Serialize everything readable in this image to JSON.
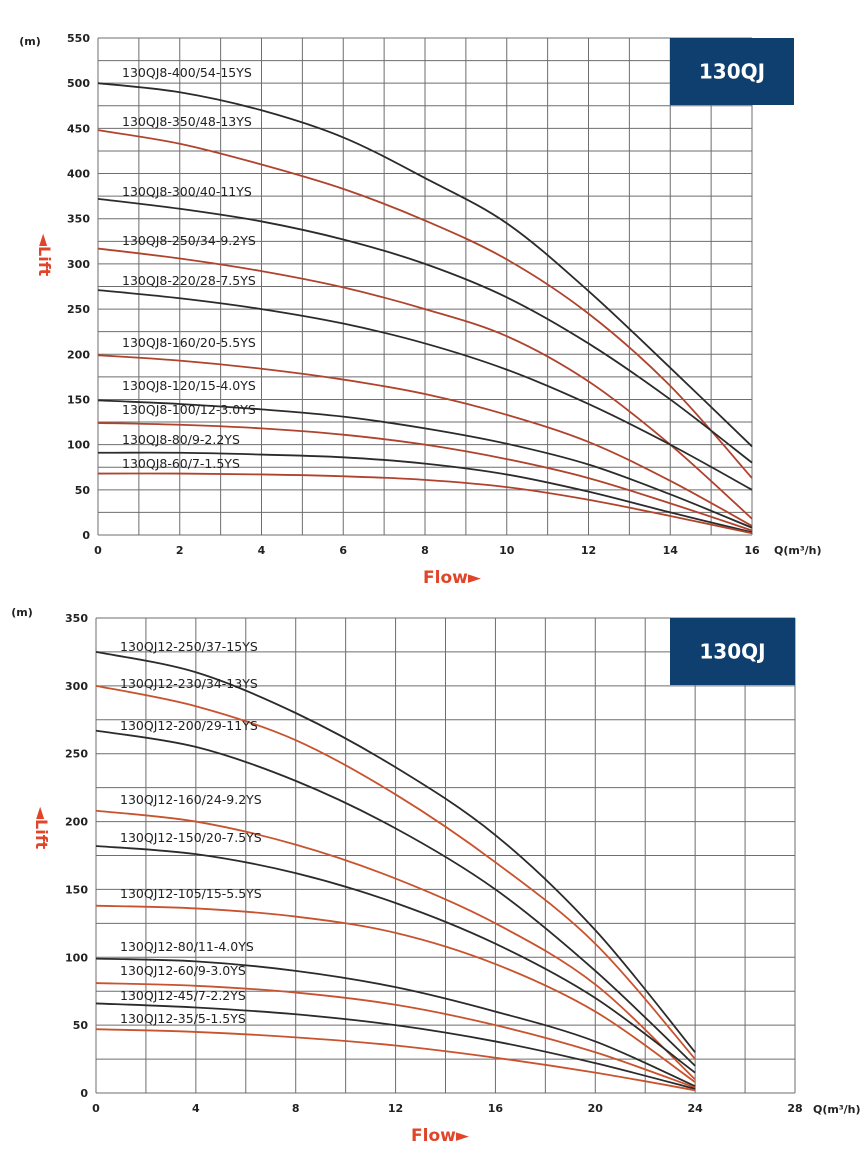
{
  "chart_data": [
    {
      "type": "line",
      "badge": "130QJ",
      "ylabel": "◄Lift",
      "yunit": "(m)",
      "xlabel": "Flow►",
      "xunit": "Q(m³/h)",
      "xlim": [
        0,
        16
      ],
      "ylim": [
        0,
        550
      ],
      "xticks": [
        0,
        2,
        4,
        6,
        8,
        10,
        12,
        14,
        16
      ],
      "yticks": [
        0,
        50,
        100,
        150,
        200,
        250,
        300,
        350,
        400,
        450,
        500,
        550
      ],
      "series": [
        {
          "name": "130QJ8-400/54-15YS",
          "color": "#2b2b2b",
          "x": [
            0,
            2,
            4,
            6,
            8,
            10,
            12,
            14,
            16
          ],
          "y": [
            500,
            490,
            470,
            440,
            395,
            345,
            270,
            185,
            98
          ]
        },
        {
          "name": "130QJ8-350/48-13YS",
          "color": "#b0432d",
          "x": [
            0,
            2,
            4,
            6,
            8,
            10,
            12,
            14,
            16
          ],
          "y": [
            448,
            433,
            410,
            383,
            348,
            305,
            245,
            165,
            63
          ]
        },
        {
          "name": "130QJ8-300/40-11YS",
          "color": "#2b2b2b",
          "x": [
            0,
            2,
            4,
            6,
            8,
            10,
            12,
            14,
            16
          ],
          "y": [
            372,
            361,
            347,
            327,
            300,
            263,
            212,
            150,
            80
          ]
        },
        {
          "name": "130QJ8-250/34-9.2YS",
          "color": "#b0432d",
          "x": [
            0,
            2,
            4,
            6,
            8,
            10,
            12,
            14,
            16
          ],
          "y": [
            317,
            306,
            292,
            274,
            250,
            220,
            170,
            100,
            18
          ]
        },
        {
          "name": "130QJ8-220/28-7.5YS",
          "color": "#2b2b2b",
          "x": [
            0,
            2,
            4,
            6,
            8,
            10,
            12,
            14,
            16
          ],
          "y": [
            271,
            262,
            250,
            234,
            212,
            183,
            145,
            100,
            50
          ]
        },
        {
          "name": "130QJ8-160/20-5.5YS",
          "color": "#b0432d",
          "x": [
            0,
            2,
            4,
            6,
            8,
            10,
            12,
            14,
            16
          ],
          "y": [
            199,
            193,
            184,
            172,
            156,
            133,
            103,
            60,
            10
          ]
        },
        {
          "name": "130QJ8-120/15-4.0YS",
          "color": "#2b2b2b",
          "x": [
            0,
            2,
            4,
            6,
            8,
            10,
            12,
            14,
            16
          ],
          "y": [
            149,
            145,
            139,
            131,
            118,
            101,
            78,
            45,
            8
          ]
        },
        {
          "name": "130QJ8-100/12-3.0YS",
          "color": "#b0432d",
          "x": [
            0,
            2,
            4,
            6,
            8,
            10,
            12,
            14,
            16
          ],
          "y": [
            124,
            122,
            118,
            111,
            100,
            84,
            63,
            35,
            5
          ]
        },
        {
          "name": "130QJ8-80/9-2.2YS",
          "color": "#2b2b2b",
          "x": [
            0,
            2,
            4,
            6,
            8,
            10,
            12,
            14,
            16
          ],
          "y": [
            91,
            91,
            89,
            86,
            79,
            67,
            48,
            25,
            3
          ]
        },
        {
          "name": "130QJ8-60/7-1.5YS",
          "color": "#b0432d",
          "x": [
            0,
            2,
            4,
            6,
            8,
            10,
            12,
            14,
            16
          ],
          "y": [
            68,
            68,
            67,
            65,
            61,
            53,
            39,
            21,
            2
          ]
        }
      ]
    },
    {
      "type": "line",
      "badge": "130QJ",
      "ylabel": "◄Lift",
      "yunit": "(m)",
      "xlabel": "Flow►",
      "xunit": "Q(m³/h)",
      "xlim": [
        0,
        28
      ],
      "ylim": [
        0,
        350
      ],
      "xticks": [
        0,
        4,
        8,
        12,
        16,
        20,
        24,
        28
      ],
      "yticks": [
        0,
        50,
        100,
        150,
        200,
        250,
        300,
        350
      ],
      "series": [
        {
          "name": "130QJ12-250/37-15YS",
          "color": "#2b2b2b",
          "x": [
            0,
            4,
            8,
            12,
            16,
            20,
            24
          ],
          "y": [
            325,
            310,
            280,
            240,
            190,
            120,
            30
          ]
        },
        {
          "name": "130QJ12-230/34-13YS",
          "color": "#c8532e",
          "x": [
            0,
            4,
            8,
            12,
            16,
            20,
            24
          ],
          "y": [
            300,
            285,
            260,
            220,
            170,
            110,
            25
          ]
        },
        {
          "name": "130QJ12-200/29-11YS",
          "color": "#2b2b2b",
          "x": [
            0,
            4,
            8,
            12,
            16,
            20,
            24
          ],
          "y": [
            267,
            255,
            230,
            195,
            150,
            90,
            20
          ]
        },
        {
          "name": "130QJ12-160/24-9.2YS",
          "color": "#c8532e",
          "x": [
            0,
            4,
            8,
            12,
            16,
            20,
            24
          ],
          "y": [
            208,
            200,
            183,
            158,
            125,
            80,
            10
          ]
        },
        {
          "name": "130QJ12-150/20-7.5YS",
          "color": "#2b2b2b",
          "x": [
            0,
            4,
            8,
            12,
            16,
            20,
            24
          ],
          "y": [
            182,
            176,
            162,
            140,
            110,
            70,
            15
          ]
        },
        {
          "name": "130QJ12-105/15-5.5YS",
          "color": "#c8532e",
          "x": [
            0,
            4,
            8,
            12,
            16,
            20,
            24
          ],
          "y": [
            138,
            136,
            130,
            118,
            95,
            60,
            8
          ]
        },
        {
          "name": "130QJ12-80/11-4.0YS",
          "color": "#2b2b2b",
          "x": [
            0,
            4,
            8,
            12,
            16,
            20,
            24
          ],
          "y": [
            99,
            97,
            90,
            78,
            60,
            38,
            5
          ]
        },
        {
          "name": "130QJ12-60/9-3.0YS",
          "color": "#c8532e",
          "x": [
            0,
            4,
            8,
            12,
            16,
            20,
            24
          ],
          "y": [
            81,
            79,
            74,
            65,
            50,
            30,
            4
          ]
        },
        {
          "name": "130QJ12-45/7-2.2YS",
          "color": "#2b2b2b",
          "x": [
            0,
            4,
            8,
            12,
            16,
            20,
            24
          ],
          "y": [
            66,
            63,
            58,
            50,
            38,
            22,
            3
          ]
        },
        {
          "name": "130QJ12-35/5-1.5YS",
          "color": "#c8532e",
          "x": [
            0,
            4,
            8,
            12,
            16,
            20,
            24
          ],
          "y": [
            47,
            45,
            41,
            35,
            26,
            15,
            2
          ]
        }
      ]
    }
  ]
}
